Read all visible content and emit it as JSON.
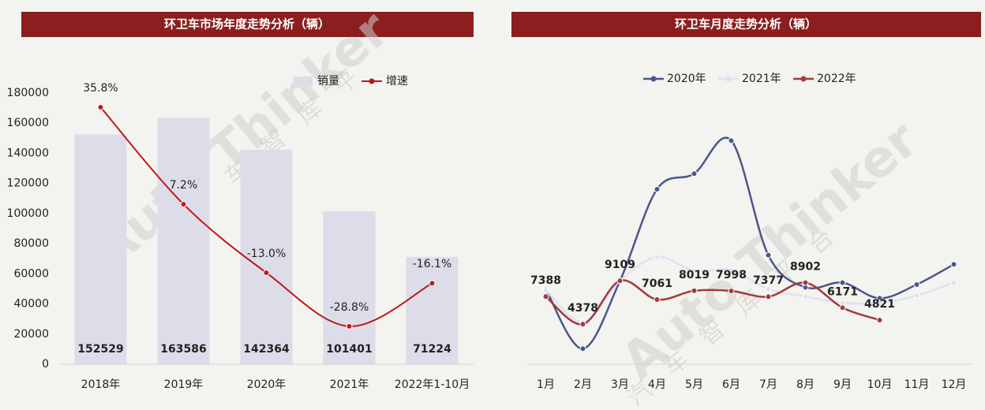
{
  "chart_data": [
    {
      "type": "combo",
      "title": "环卫车市场年度走势分析（辆）",
      "categories": [
        "2018年",
        "2019年",
        "2020年",
        "2021年",
        "2022年1-10月"
      ],
      "series": [
        {
          "name": "销量",
          "color": "#dcdde9",
          "values": [
            152529,
            163586,
            142364,
            101401,
            71224
          ]
        },
        {
          "name": "增速",
          "color": "#c0171d",
          "axis": "y2",
          "values": [
            35.8,
            7.2,
            -13.0,
            -28.8,
            -16.1
          ],
          "value_labels": [
            "35.8%",
            "7.2%",
            "-13.0%",
            "-28.8%",
            "-16.1%"
          ]
        }
      ],
      "ylim": [
        0,
        180000
      ],
      "yticks": [
        0,
        20000,
        40000,
        60000,
        80000,
        100000,
        120000,
        140000,
        160000,
        180000
      ],
      "y2lim": [
        -40,
        40
      ],
      "watermark": "Auto Thinker",
      "watermark_cn": "车智库平"
    },
    {
      "type": "line",
      "title": "环卫车月度走势分析（辆）",
      "categories": [
        "1月",
        "2月",
        "3月",
        "4月",
        "5月",
        "6月",
        "7月",
        "8月",
        "9月",
        "10月",
        "11月",
        "12月"
      ],
      "series": [
        {
          "name": "2020年",
          "color": "#4b5689",
          "values": [
            8200,
            1700,
            9100,
            19100,
            20800,
            24400,
            11900,
            8400,
            8900,
            7200,
            8700,
            10900
          ]
        },
        {
          "name": "2021年",
          "color": "#dfe1ee",
          "values": [
            8100,
            4600,
            9100,
            11700,
            10200,
            10250,
            8200,
            7400,
            6700,
            6700,
            7500,
            8900
          ]
        },
        {
          "name": "2022年",
          "color": "#a33a3c",
          "values": [
            7388,
            4378,
            9109,
            7061,
            8019,
            7998,
            7377,
            8902,
            6171,
            4821,
            null,
            null
          ]
        }
      ],
      "ylim": [
        0,
        32000
      ],
      "labeled_series": 2,
      "watermark": "Auto Thinker",
      "watermark_cn": "汽车智库平台"
    }
  ]
}
